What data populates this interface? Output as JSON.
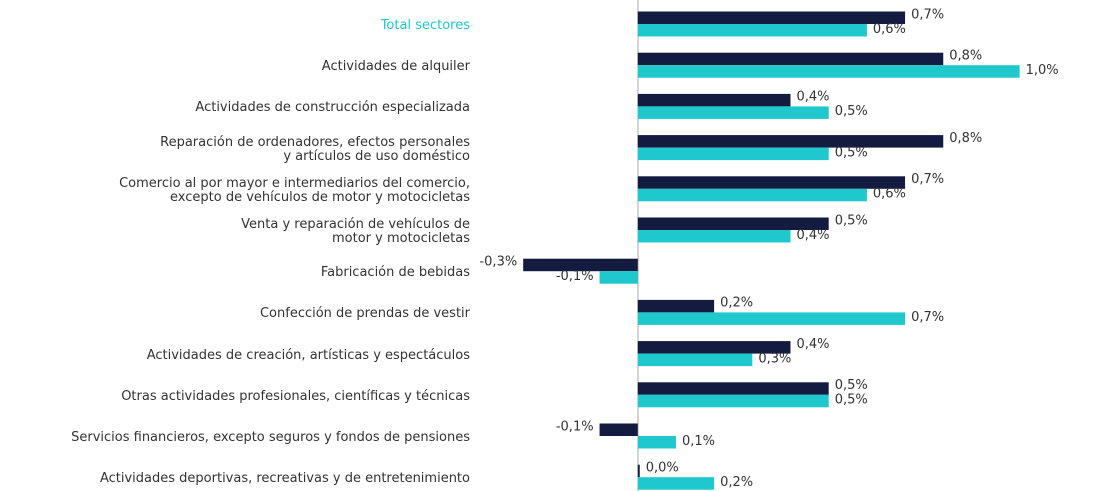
{
  "chart_data": {
    "type": "hbar",
    "categories": [
      "Total sectores",
      "Actividades de alquiler",
      "Actividades de construcción especializada",
      "Reparación de ordenadores, efectos personales\ny artículos de uso doméstico",
      "Comercio al por mayor e intermediarios del comercio,\nexcepto de vehículos de motor y motocicletas",
      "Venta y reparación de vehículos de\nmotor y motocicletas",
      "Fabricación de bebidas",
      "Confección de prendas de vestir",
      "Actividades de creación, artísticas y espectáculos",
      "Otras actividades profesionales, científicas y técnicas",
      "Servicios financieros, excepto seguros y fondos de pensiones",
      "Actividades deportivas, recreativas y de entretenimiento"
    ],
    "series": [
      {
        "color": "#141b40",
        "values": [
          0.7,
          0.8,
          0.4,
          0.8,
          0.7,
          0.5,
          -0.3,
          0.2,
          0.4,
          0.5,
          -0.1,
          0.0
        ],
        "value_labels": [
          "0,7%",
          "0,8%",
          "0,4%",
          "0,8%",
          "0,7%",
          "0,5%",
          "-0,3%",
          "0,2%",
          "0,4%",
          "0,5%",
          "-0,1%",
          "0,0%"
        ]
      },
      {
        "color": "#1ec8cc",
        "values": [
          0.6,
          1.0,
          0.5,
          0.5,
          0.6,
          0.4,
          -0.1,
          0.7,
          0.3,
          0.5,
          0.1,
          0.2
        ],
        "value_labels": [
          "0,6%",
          "1,0%",
          "0,5%",
          "0,5%",
          "0,6%",
          "0,4%",
          "-0,1%",
          "0,7%",
          "0,3%",
          "0,5%",
          "0,1%",
          "0,2%"
        ]
      }
    ],
    "xlim": [
      -0.4,
      1.2
    ]
  }
}
